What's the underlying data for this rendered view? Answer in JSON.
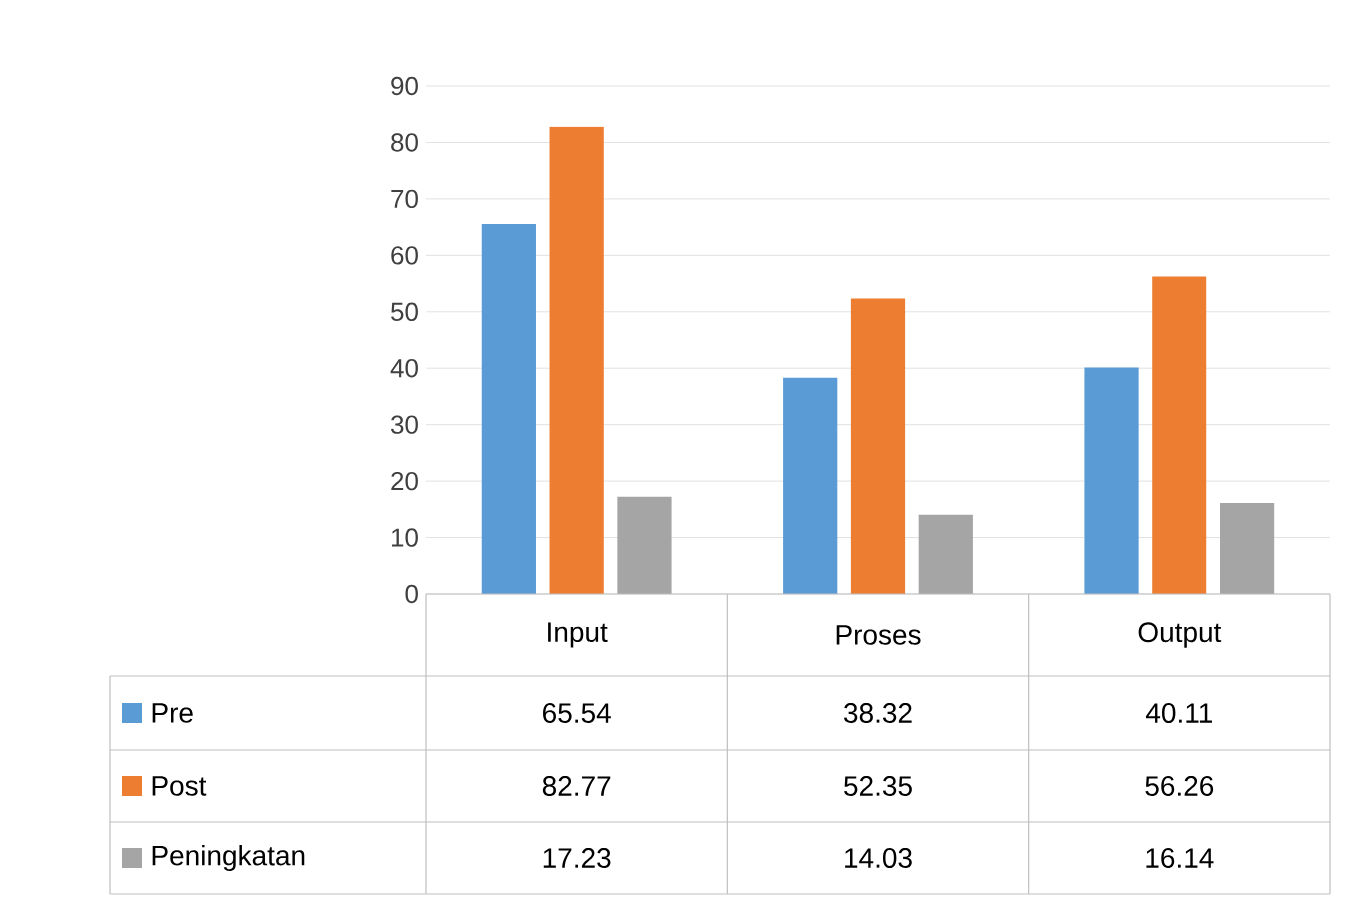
{
  "chart_data": {
    "type": "bar",
    "categories": [
      "Input",
      "Proses",
      "Output"
    ],
    "series": [
      {
        "name": "Pre",
        "color": "#5b9bd5",
        "values": [
          65.54,
          38.32,
          40.11
        ]
      },
      {
        "name": "Post",
        "color": "#ed7d31",
        "values": [
          82.77,
          52.35,
          56.26
        ]
      },
      {
        "name": "Peningkatan",
        "color": "#a5a5a5",
        "values": [
          17.23,
          14.03,
          16.14
        ]
      }
    ],
    "ylim": [
      0,
      90
    ],
    "yticks": [
      0,
      10,
      20,
      30,
      40,
      50,
      60,
      70,
      80,
      90
    ],
    "grid": "y",
    "legend": "bottom",
    "data_labels": true
  }
}
